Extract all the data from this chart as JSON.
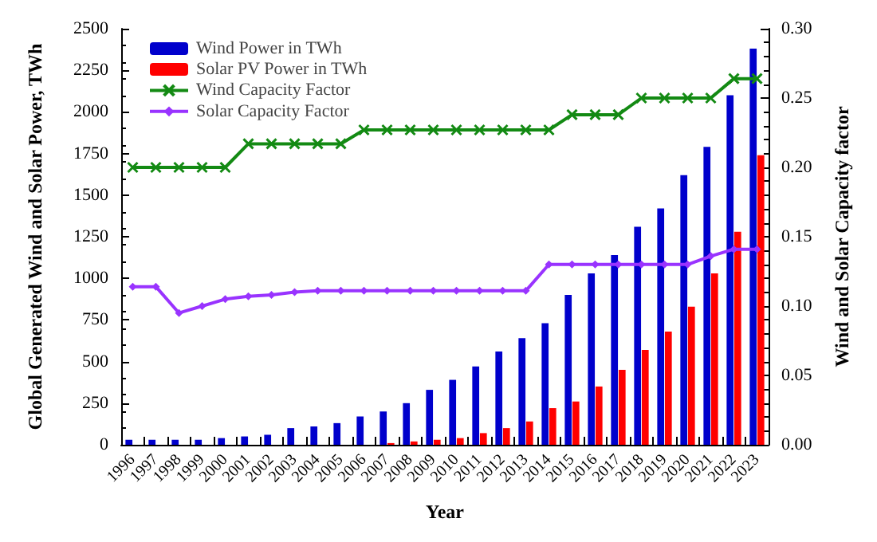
{
  "chart_data": {
    "type": "bar",
    "xlabel": "Year",
    "ylabel": "Global Generated Wind and Solar Power, TWh",
    "y2label": "Wind and Solar Capacity factor",
    "categories": [
      "1996",
      "1997",
      "1998",
      "1999",
      "2000",
      "2001",
      "2002",
      "2003",
      "2004",
      "2005",
      "2006",
      "2007",
      "2008",
      "2009",
      "2010",
      "2011",
      "2012",
      "2013",
      "2014",
      "2015",
      "2016",
      "2017",
      "2018",
      "2019",
      "2020",
      "2021",
      "2022",
      "2023"
    ],
    "series": [
      {
        "name": "Wind Power in TWh",
        "color": "#0000cc",
        "values": [
          30,
          30,
          30,
          30,
          40,
          50,
          60,
          100,
          110,
          130,
          170,
          200,
          250,
          330,
          390,
          470,
          560,
          640,
          730,
          900,
          1030,
          1140,
          1310,
          1420,
          1620,
          1790,
          2100,
          2380
        ]
      },
      {
        "name": "Solar PV Power in TWh",
        "color": "#ff0000",
        "values": [
          0,
          0,
          0,
          0,
          0,
          0,
          0,
          0,
          0,
          0,
          0,
          10,
          20,
          30,
          40,
          70,
          100,
          140,
          220,
          260,
          350,
          450,
          570,
          680,
          830,
          1030,
          1280,
          1740
        ]
      },
      {
        "name": "Wind Capacity Factor",
        "type": "line",
        "axis": "y2",
        "color": "#138a13",
        "marker": "cross",
        "values": [
          0.2,
          0.2,
          0.2,
          0.2,
          0.2,
          0.217,
          0.217,
          0.217,
          0.217,
          0.217,
          0.227,
          0.227,
          0.227,
          0.227,
          0.227,
          0.227,
          0.227,
          0.227,
          0.227,
          0.238,
          0.238,
          0.238,
          0.25,
          0.25,
          0.25,
          0.25,
          0.264,
          0.264
        ]
      },
      {
        "name": "Solar Capacity Factor",
        "type": "line",
        "axis": "y2",
        "color": "#9933ff",
        "marker": "diamond",
        "values": [
          0.114,
          0.114,
          0.095,
          0.1,
          0.105,
          0.107,
          0.108,
          0.11,
          0.111,
          0.111,
          0.111,
          0.111,
          0.111,
          0.111,
          0.111,
          0.111,
          0.111,
          0.111,
          0.13,
          0.13,
          0.13,
          0.13,
          0.13,
          0.13,
          0.13,
          0.136,
          0.141,
          0.141
        ]
      }
    ],
    "ylim": [
      0,
      2500
    ],
    "yticks": [
      0,
      250,
      500,
      750,
      1000,
      1250,
      1500,
      1750,
      2000,
      2250,
      2500
    ],
    "y2lim": [
      0,
      0.3
    ],
    "y2ticks": [
      {
        "value": 0,
        "label": "0.00"
      },
      {
        "value": 0.05,
        "label": "0.05"
      },
      {
        "value": 0.1,
        "label": "0.10"
      },
      {
        "value": 0.15,
        "label": "0.15"
      },
      {
        "value": 0.2,
        "label": "0.20"
      },
      {
        "value": 0.25,
        "label": "0.25"
      },
      {
        "value": 0.3,
        "label": "0.30"
      }
    ],
    "legend": "top left",
    "grid": false
  }
}
